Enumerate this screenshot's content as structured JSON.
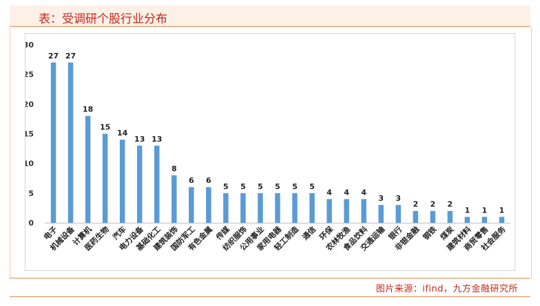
{
  "header": {
    "title": "表：受调研个股行业分布"
  },
  "footer": {
    "source": "图片来源：ifind，九方金融研究所"
  },
  "colors": {
    "bar": "#5b9bd5",
    "title": "#c0271b",
    "accent_line": "#e08a4a"
  },
  "chart_data": {
    "type": "bar",
    "title": "",
    "xlabel": "",
    "ylabel": "",
    "ylim": [
      0,
      30
    ],
    "yticks": [
      0,
      5,
      10,
      15,
      20,
      25,
      30
    ],
    "grid": false,
    "categories": [
      "电子",
      "机械设备",
      "计算机",
      "医药生物",
      "汽车",
      "电力设备",
      "基础化工",
      "建筑装饰",
      "国防军工",
      "有色金属",
      "传媒",
      "纺织服饰",
      "公用事业",
      "家用电器",
      "轻工制造",
      "通信",
      "环保",
      "农林牧渔",
      "食品饮料",
      "交通运输",
      "银行",
      "非银金融",
      "钢铁",
      "煤炭",
      "建筑材料",
      "商贸零售",
      "社会服务"
    ],
    "values": [
      27,
      27,
      18,
      15,
      14,
      13,
      13,
      8,
      6,
      6,
      5,
      5,
      5,
      5,
      5,
      5,
      4,
      4,
      4,
      3,
      3,
      2,
      2,
      2,
      1,
      1,
      1
    ]
  }
}
